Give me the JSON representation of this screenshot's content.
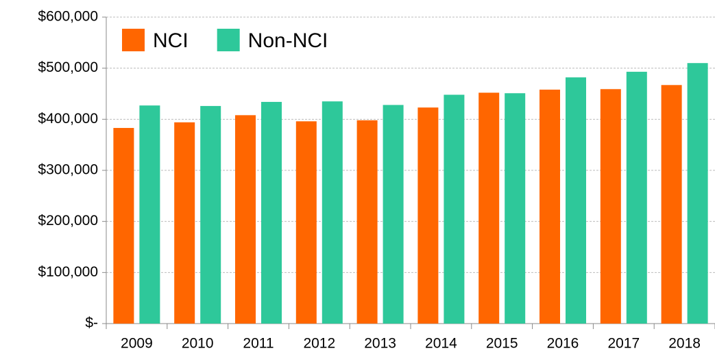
{
  "chart_data": {
    "type": "bar",
    "categories": [
      "2009",
      "2010",
      "2011",
      "2012",
      "2013",
      "2014",
      "2015",
      "2016",
      "2017",
      "2018"
    ],
    "series": [
      {
        "name": "NCI",
        "color": "#ff6600",
        "values": [
          383000,
          394000,
          408000,
          396000,
          398000,
          423000,
          452000,
          458000,
          459000,
          467000
        ]
      },
      {
        "name": "Non-NCI",
        "color": "#2ec89a",
        "values": [
          427000,
          426000,
          434000,
          435000,
          428000,
          448000,
          451000,
          482000,
          493000,
          510000
        ]
      }
    ],
    "ylim": [
      0,
      600000
    ],
    "yticks": [
      {
        "value": 0,
        "label": "$-"
      },
      {
        "value": 100000,
        "label": "$100,000"
      },
      {
        "value": 200000,
        "label": "$200,000"
      },
      {
        "value": 300000,
        "label": "$300,000"
      },
      {
        "value": 400000,
        "label": "$400,000"
      },
      {
        "value": 500000,
        "label": "$500,000"
      },
      {
        "value": 600000,
        "label": "$600,000"
      }
    ],
    "grid": true,
    "legend": "top-left"
  }
}
